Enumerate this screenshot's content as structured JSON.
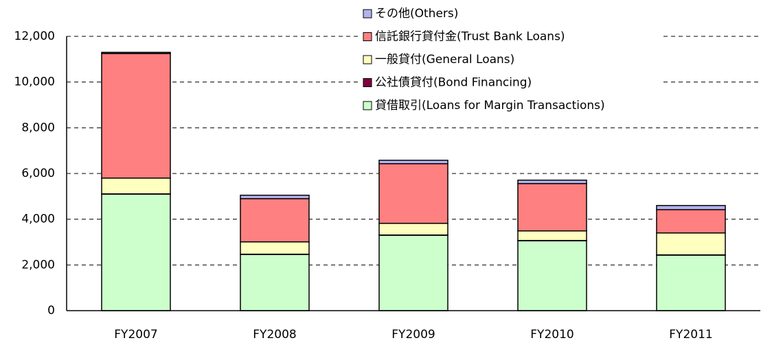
{
  "chart_data": {
    "type": "stacked_bar",
    "categories": [
      "FY2007",
      "FY2008",
      "FY2009",
      "FY2010",
      "FY2011"
    ],
    "series": [
      {
        "name": "貸借取引(Loans for Margin Transactions)",
        "color": "#ccffcc",
        "values": [
          5100,
          2460,
          3300,
          3060,
          2430
        ]
      },
      {
        "name": "公社債貸付(Bond Financing)",
        "color": "#800040",
        "values": [
          10,
          10,
          10,
          10,
          10
        ]
      },
      {
        "name": "一般貸付(General Loans)",
        "color": "#ffffc0",
        "values": [
          690,
          540,
          510,
          420,
          960
        ]
      },
      {
        "name": "信託銀行貸付金(Trust Bank Loans)",
        "color": "#ff8080",
        "values": [
          5450,
          1890,
          2610,
          2070,
          1020
        ]
      },
      {
        "name": "その他(Others)",
        "color": "#b3b3f0",
        "values": [
          50,
          150,
          150,
          150,
          180
        ]
      }
    ],
    "ylim": [
      0,
      12000
    ],
    "yticks": [
      0,
      {
        "value": 2000,
        "label": "2,000"
      },
      {
        "value": 4000,
        "label": "4,000"
      },
      {
        "value": 6000,
        "label": "6,000"
      },
      {
        "value": 8000,
        "label": "8,000"
      },
      {
        "value": 10000,
        "label": "10,000"
      },
      {
        "value": 12000,
        "label": "12,000"
      }
    ],
    "grid": true,
    "legend": "top-right"
  }
}
